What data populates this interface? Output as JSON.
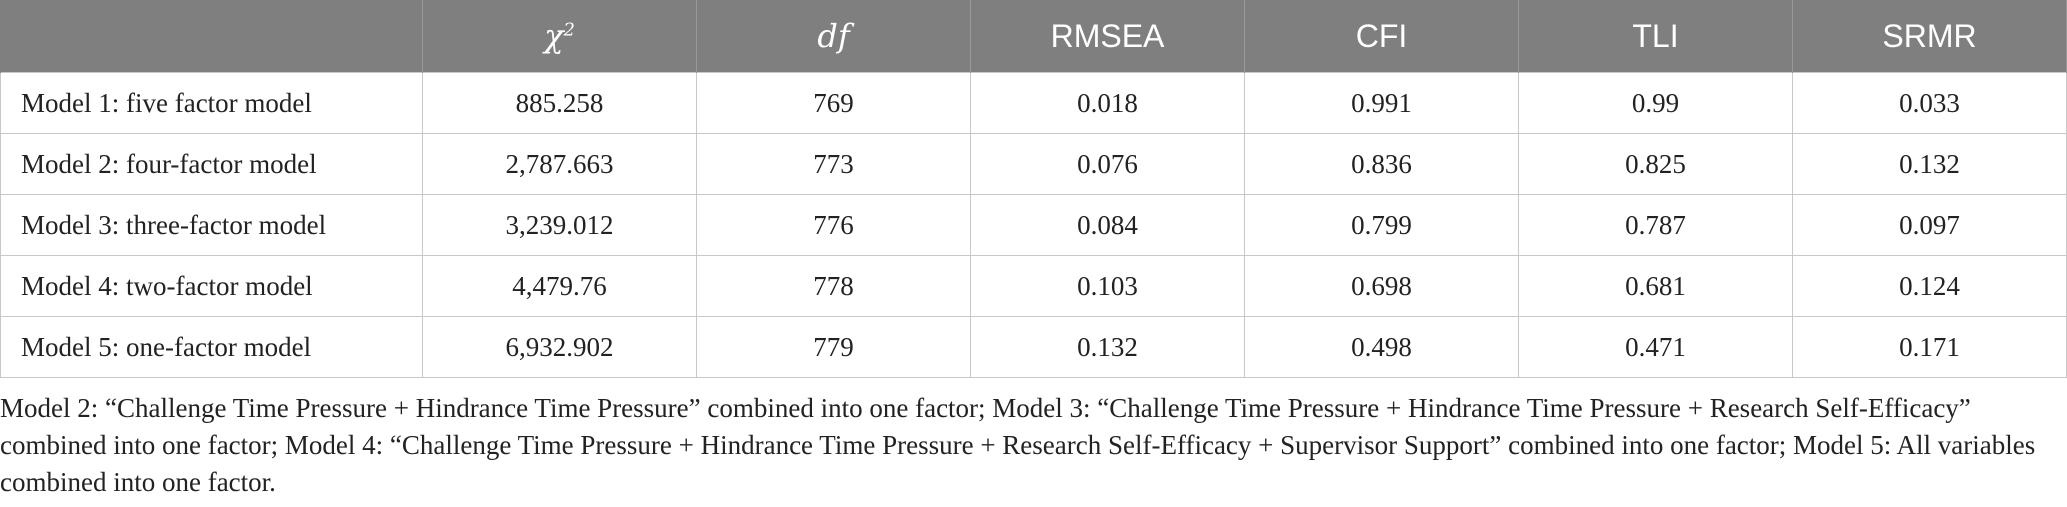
{
  "table": {
    "headers": [
      {
        "label": "",
        "sup": ""
      },
      {
        "label": "χ",
        "sup": "2"
      },
      {
        "label": "df",
        "sup": ""
      },
      {
        "label": "RMSEA",
        "sup": ""
      },
      {
        "label": "CFI",
        "sup": ""
      },
      {
        "label": "TLI",
        "sup": ""
      },
      {
        "label": "SRMR",
        "sup": ""
      }
    ],
    "rows": [
      {
        "model": "Model 1: five factor model",
        "chi2": "885.258",
        "df": "769",
        "rmsea": "0.018",
        "cfi": "0.991",
        "tli": "0.99",
        "srmr": "0.033"
      },
      {
        "model": "Model 2: four-factor model",
        "chi2": "2,787.663",
        "df": "773",
        "rmsea": "0.076",
        "cfi": "0.836",
        "tli": "0.825",
        "srmr": "0.132"
      },
      {
        "model": "Model 3: three-factor model",
        "chi2": "3,239.012",
        "df": "776",
        "rmsea": "0.084",
        "cfi": "0.799",
        "tli": "0.787",
        "srmr": "0.097"
      },
      {
        "model": "Model 4: two-factor model",
        "chi2": "4,479.76",
        "df": "778",
        "rmsea": "0.103",
        "cfi": "0.698",
        "tli": "0.681",
        "srmr": "0.124"
      },
      {
        "model": "Model 5: one-factor model",
        "chi2": "6,932.902",
        "df": "779",
        "rmsea": "0.132",
        "cfi": "0.498",
        "tli": "0.471",
        "srmr": "0.171"
      }
    ]
  },
  "note": "Model 2: “Challenge Time Pressure + Hindrance Time Pressure” combined into one factor; Model 3: “Challenge Time Pressure + Hindrance Time Pressure + Research Self-Efficacy” combined into one factor; Model 4: “Challenge Time Pressure + Hindrance Time Pressure + Research Self-Efficacy + Supervisor Support” combined into one factor; Model 5: All variables combined into one factor.",
  "colors": {
    "header_bg": "#7f7f7f",
    "header_text": "#ffffff",
    "grid": "#c8c8c8"
  }
}
